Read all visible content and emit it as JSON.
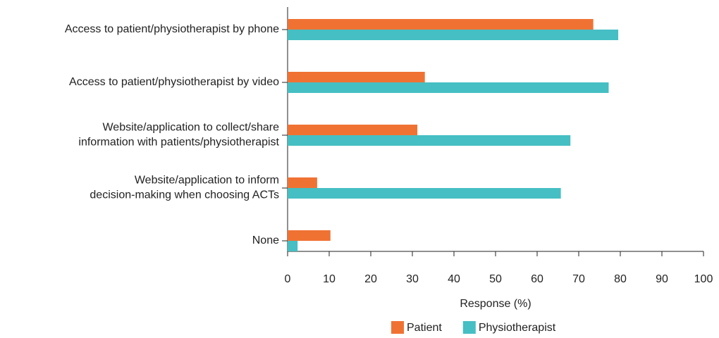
{
  "chart_data": {
    "type": "bar",
    "orientation": "horizontal",
    "categories": [
      [
        "Access to patient/physiotherapist by phone"
      ],
      [
        "Access to patient/physiotherapist by video"
      ],
      [
        "Website/application to collect/share",
        "information with patients/physiotherapist"
      ],
      [
        "Website/application to inform",
        "decision-making when choosing ACTs"
      ],
      [
        "None"
      ]
    ],
    "series": [
      {
        "name": "Patient",
        "color": "#f07233",
        "values": [
          73.5,
          33,
          31.2,
          7.1,
          10.3
        ]
      },
      {
        "name": "Physiotherapist",
        "color": "#45bfc3",
        "values": [
          79.5,
          77.2,
          68,
          65.7,
          2.4
        ]
      }
    ],
    "xlabel": "Response (%)",
    "xlim": [
      0,
      100
    ],
    "xticks": [
      0,
      10,
      20,
      30,
      40,
      50,
      60,
      70,
      80,
      90,
      100
    ],
    "grid": false,
    "legend": "bottom"
  }
}
